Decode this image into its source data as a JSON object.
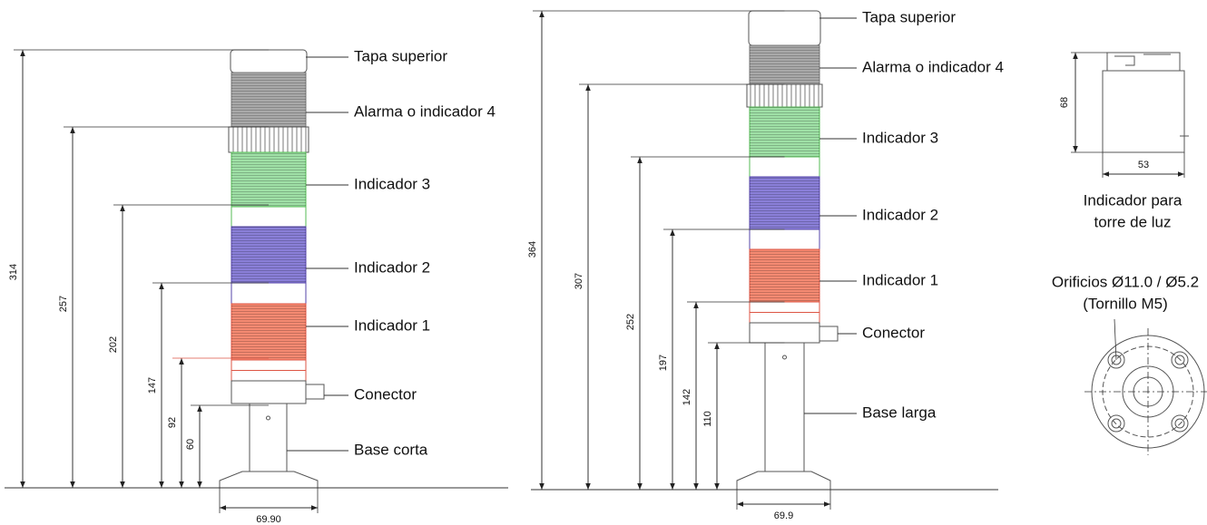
{
  "left_tower": {
    "labels": [
      "Tapa superior",
      "Alarma o indicador 4",
      "Indicador 3",
      "Indicador 2",
      "Indicador 1",
      "Conector",
      "Base corta"
    ],
    "dimensions": [
      "314",
      "257",
      "202",
      "147",
      "92",
      "60"
    ],
    "base_width": "69.90"
  },
  "right_tower": {
    "labels": [
      "Tapa superior",
      "Alarma o indicador 4",
      "Indicador 3",
      "Indicador 2",
      "Indicador 1",
      "Conector",
      "Base larga"
    ],
    "dimensions": [
      "364",
      "307",
      "252",
      "197",
      "142",
      "110"
    ],
    "base_width": "69.9"
  },
  "indicator_detail": {
    "height": "68",
    "width": "53",
    "caption_lines": [
      "Indicador para",
      "torre de luz"
    ]
  },
  "mounting": {
    "caption_lines": [
      "Orificios Ø11.0 / Ø5.2",
      "(Tornillo M5)"
    ]
  }
}
